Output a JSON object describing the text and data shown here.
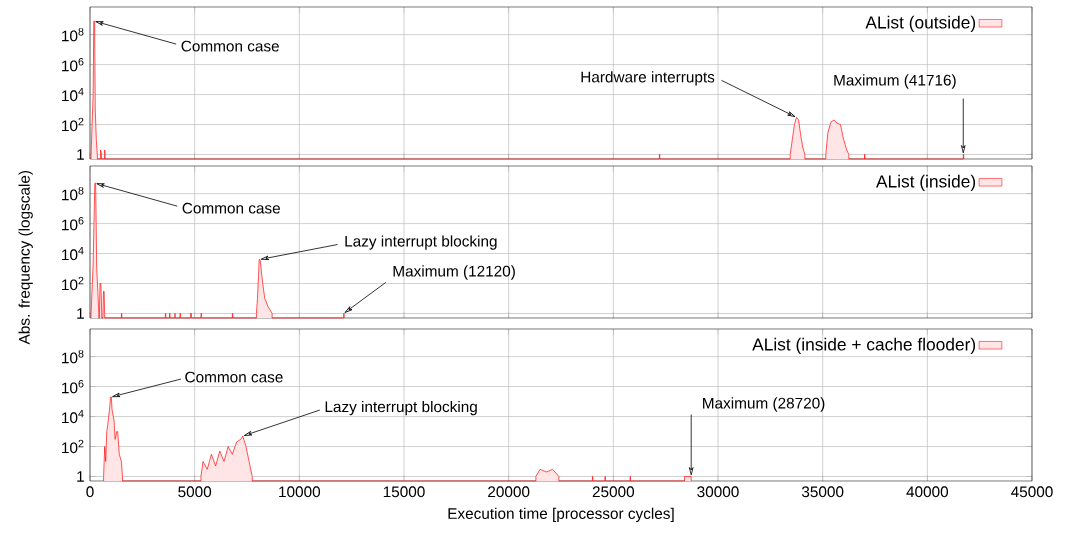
{
  "chart_data": [
    {
      "type": "area",
      "log": true,
      "grid": true,
      "legend": "top right",
      "tick_labels": "y",
      "xlim": [
        0,
        45000
      ],
      "xticks": [
        0,
        5000,
        10000,
        15000,
        20000,
        25000,
        30000,
        35000,
        40000,
        45000
      ],
      "ylim": [
        0.5,
        7000000000
      ],
      "yticks": [
        1,
        {
          "value": 100,
          "label": "10$^{2}$"
        },
        {
          "value": 10000,
          "label": "10$^{4}$"
        },
        {
          "value": 1000000,
          "label": "10$^{6}$"
        },
        {
          "value": 100000000,
          "label": "10$^{8}$"
        }
      ],
      "series": [
        {
          "name": "AList (outside)",
          "color": "#ff0000",
          "x": [
            50,
            150,
            180,
            220,
            250,
            300,
            350,
            null,
            500,
            550,
            null,
            700,
            720,
            null,
            27200,
            27220,
            null,
            33450,
            33550,
            33650,
            33750,
            33850,
            33950,
            34050,
            34150,
            null,
            35150,
            35250,
            35400,
            35550,
            35700,
            35850,
            36000,
            36150,
            36250,
            null,
            37000,
            37020,
            null,
            41716,
            41740
          ],
          "values": [
            1,
            10000,
            800000000,
            800000000,
            1000,
            10,
            1,
            null,
            2,
            1,
            null,
            2,
            1,
            null,
            1,
            1,
            null,
            1,
            10,
            100,
            300,
            200,
            20,
            3,
            1,
            null,
            1,
            30,
            150,
            200,
            120,
            100,
            10,
            2,
            1,
            null,
            1,
            1,
            null,
            1,
            1
          ]
        }
      ],
      "annotations": [
        {
          "text": "Common case",
          "x": 200,
          "y": 800000000
        },
        {
          "text": "Hardware interrupts",
          "x": 33750,
          "y": 300
        },
        {
          "text": "Maximum (41716)",
          "x": 41716,
          "y": 1
        }
      ]
    },
    {
      "type": "area",
      "log": true,
      "grid": true,
      "legend": "top right",
      "tick_labels": "y",
      "ylabel": "Abs. frequency (logscale)",
      "xlim": [
        0,
        45000
      ],
      "xticks": [
        0,
        5000,
        10000,
        15000,
        20000,
        25000,
        30000,
        35000,
        40000,
        45000
      ],
      "ylim": [
        0.5,
        7000000000
      ],
      "yticks": [
        1,
        {
          "value": 100,
          "label": "10$^{2}$"
        },
        {
          "value": 10000,
          "label": "10$^{4}$"
        },
        {
          "value": 1000000,
          "label": "10$^{6}$"
        },
        {
          "value": 100000000,
          "label": "10$^{8}$"
        }
      ],
      "series": [
        {
          "name": "AList (inside)",
          "color": "#ff0000",
          "x": [
            50,
            150,
            230,
            270,
            320,
            380,
            420,
            null,
            450,
            480,
            520,
            560,
            null,
            620,
            645,
            675,
            700,
            null,
            1500,
            1520,
            null,
            3600,
            3620,
            null,
            3800,
            3820,
            null,
            4050,
            4070,
            null,
            4300,
            4320,
            null,
            4800,
            4850,
            null,
            5300,
            5330,
            null,
            6800,
            6820,
            null,
            7950,
            8000,
            8050,
            8080,
            8120,
            8150,
            8250,
            8350,
            8500,
            8700,
            null,
            12120,
            12140
          ],
          "values": [
            1,
            2000,
            500000000,
            500000000,
            1000,
            20,
            1,
            null,
            1,
            100,
            100,
            1,
            null,
            1,
            30,
            30,
            1,
            null,
            1,
            1,
            null,
            1,
            1,
            null,
            1,
            1,
            null,
            1,
            1,
            null,
            1,
            1,
            null,
            1,
            1,
            null,
            1,
            1,
            null,
            1,
            1,
            null,
            1,
            10,
            300,
            4000,
            4000,
            2000,
            100,
            10,
            3,
            1,
            null,
            1,
            1
          ]
        }
      ],
      "annotations": [
        {
          "text": "Common case",
          "x": 250,
          "y": 500000000
        },
        {
          "text": "Lazy interrupt blocking",
          "x": 8100,
          "y": 4000
        },
        {
          "text": "Maximum (12120)",
          "x": 12120,
          "y": 1
        }
      ]
    },
    {
      "type": "area",
      "log": true,
      "grid": true,
      "legend": "top right",
      "xlabel": "Execution time [processor cycles]",
      "xlim": [
        0,
        45000
      ],
      "xticks": [
        0,
        5000,
        10000,
        15000,
        20000,
        25000,
        30000,
        35000,
        40000,
        45000
      ],
      "ylim": [
        0.5,
        7000000000
      ],
      "yticks": [
        1,
        {
          "value": 100,
          "label": "10$^{2}$"
        },
        {
          "value": 10000,
          "label": "10$^{4}$"
        },
        {
          "value": 1000000,
          "label": "10$^{6}$"
        },
        {
          "value": 100000000,
          "label": "10$^{8}$"
        }
      ],
      "series": [
        {
          "name": "AList (inside + cache flooder)",
          "color": "#ff0000",
          "x": [
            650,
            700,
            750,
            800,
            850,
            950,
            980,
            1020,
            1050,
            1150,
            1200,
            1280,
            1320,
            1400,
            1500,
            1550,
            null,
            5300,
            5400,
            5600,
            5800,
            6000,
            6200,
            6400,
            6600,
            6800,
            7000,
            7200,
            7300,
            7450,
            7600,
            7750,
            null,
            21300,
            21500,
            21800,
            22100,
            22400,
            null,
            24000,
            24020,
            null,
            24600,
            24620,
            null,
            25800,
            25820,
            null,
            28400,
            28600,
            28720
          ],
          "values": [
            1,
            100,
            10,
            1000,
            3000,
            50000,
            200000,
            200000,
            30000,
            5000,
            300,
            1000,
            1000,
            30,
            10,
            1,
            null,
            1,
            10,
            3,
            30,
            5,
            50,
            10,
            100,
            30,
            200,
            300,
            500,
            100,
            10,
            1,
            null,
            1,
            3,
            2,
            3,
            1,
            null,
            1,
            1,
            null,
            1,
            1,
            null,
            1,
            1,
            null,
            1,
            1,
            1
          ]
        }
      ],
      "annotations": [
        {
          "text": "Common case",
          "x": 1000,
          "y": 200000
        },
        {
          "text": "Lazy interrupt blocking",
          "x": 7300,
          "y": 500
        },
        {
          "text": "Maximum (28720)",
          "x": 28720,
          "y": 1
        }
      ]
    }
  ]
}
